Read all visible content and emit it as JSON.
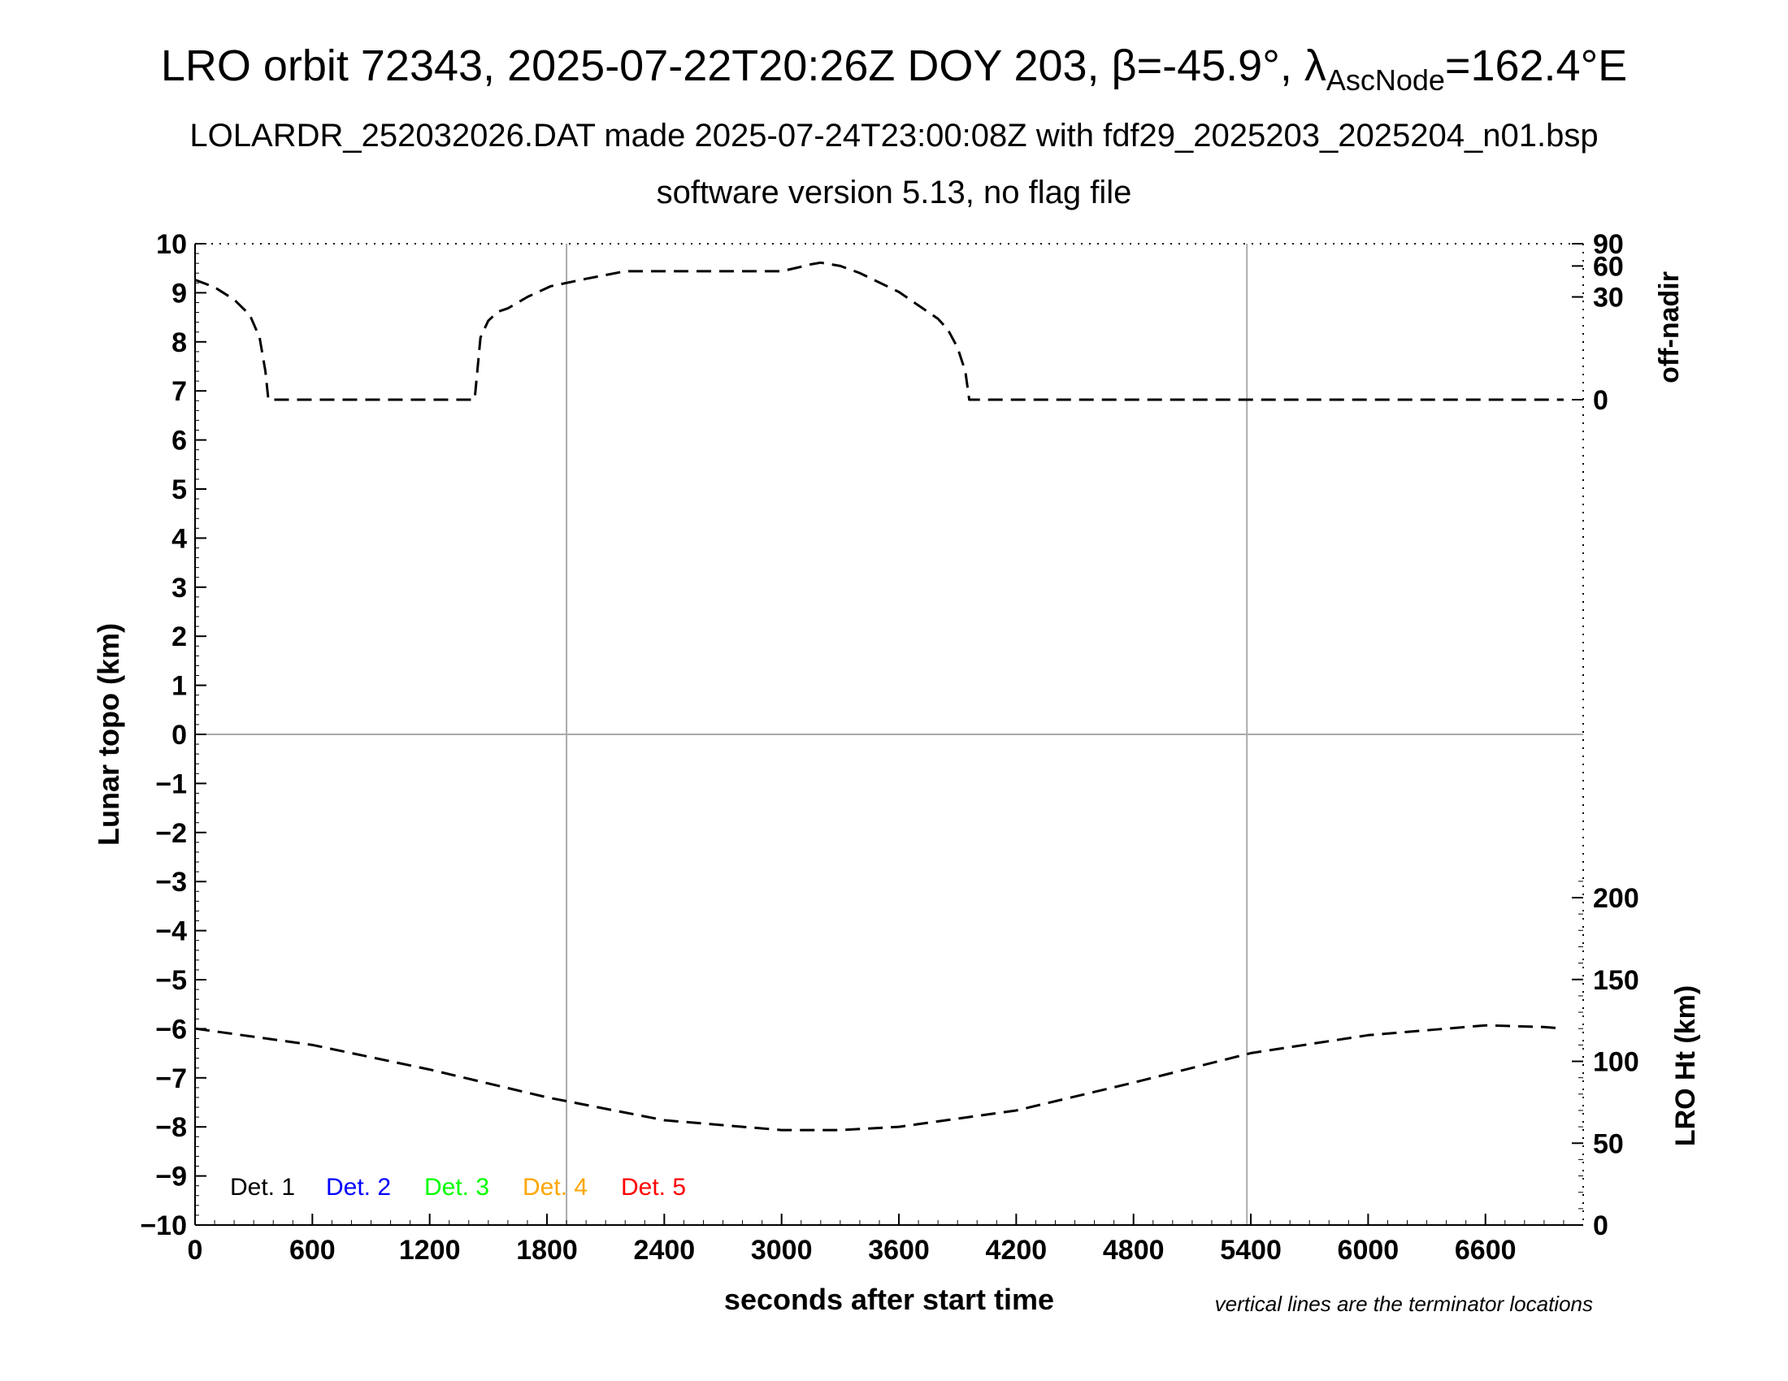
{
  "title": {
    "line1_pre": "LRO orbit 72343, 2025-07-22T20:26Z DOY 203, β=-45.9°, λ",
    "line1_sub": "AscNode",
    "line1_post": "=162.4°E",
    "line2": "LOLARDR_252032026.DAT made 2025-07-24T23:00:08Z with fdf29_2025203_2025204_n01.bsp",
    "line3": "software version 5.13, no flag file"
  },
  "note": "vertical lines are the terminator locations",
  "chart_data": {
    "type": "line",
    "xlabel": "seconds after start time",
    "ylabel": "Lunar topo (km)",
    "y2label_top": "off-nadir",
    "y2label_bottom": "LRO Ht (km)",
    "xlim": [
      0,
      7100
    ],
    "ylim": [
      -10,
      10
    ],
    "x_ticks": [
      "0",
      "600",
      "1200",
      "1800",
      "2400",
      "3000",
      "3600",
      "4200",
      "4800",
      "5400",
      "6000",
      "6600"
    ],
    "y_ticks": [
      "10",
      "9",
      "8",
      "7",
      "6",
      "5",
      "4",
      "3",
      "2",
      "1",
      "0",
      "−1",
      "−2",
      "−3",
      "−4",
      "−5",
      "−6",
      "−7",
      "−8",
      "−9",
      "−10"
    ],
    "off_nadir_ticks": [
      "90",
      "60",
      "30",
      "0"
    ],
    "ht_ticks": [
      "200",
      "150",
      "100",
      "50",
      "0"
    ],
    "terminators_s": [
      1900,
      5380
    ],
    "legend": [
      {
        "label": "Det. 1",
        "color": "#000000"
      },
      {
        "label": "Det. 2",
        "color": "#0000ff"
      },
      {
        "label": "Det. 3",
        "color": "#00ff00"
      },
      {
        "label": "Det. 4",
        "color": "#ffa500"
      },
      {
        "label": "Det. 5",
        "color": "#ff0000"
      }
    ],
    "series": [
      {
        "name": "off-nadir",
        "axis": "off-nadir (deg)",
        "x": [
          0,
          100,
          200,
          280,
          330,
          360,
          375,
          800,
          1200,
          1430,
          1460,
          1500,
          1550,
          1600,
          1700,
          1820,
          2000,
          2200,
          3000,
          3080,
          3150,
          3200,
          3300,
          3400,
          3600,
          3800,
          3850,
          3900,
          3940,
          3960,
          7000
        ],
        "values": [
          45,
          38,
          28,
          18,
          8,
          1,
          0,
          0,
          0,
          0,
          8,
          15,
          20,
          22,
          30,
          39,
          46,
          54,
          54,
          58,
          62,
          64,
          60,
          52,
          34,
          16,
          11,
          5,
          1,
          0,
          0
        ]
      },
      {
        "name": "LRO Ht",
        "axis": "LRO Ht (km)",
        "x": [
          0,
          600,
          1200,
          1800,
          2400,
          3000,
          3300,
          3600,
          4200,
          4800,
          5400,
          6000,
          6600,
          6900,
          7000
        ],
        "values": [
          120,
          110,
          95,
          78,
          64,
          58,
          58,
          60,
          70,
          87,
          105,
          116,
          122,
          121,
          120
        ]
      }
    ]
  }
}
